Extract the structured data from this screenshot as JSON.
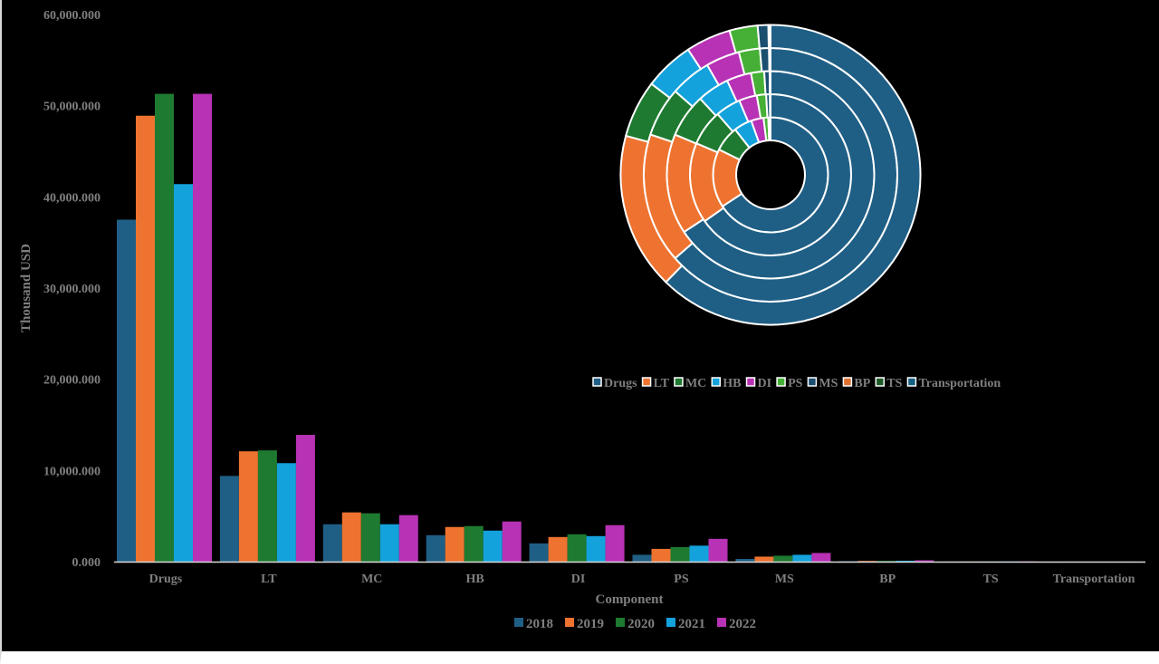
{
  "chart_data": [
    {
      "type": "bar",
      "xlabel": "Component",
      "ylabel": "Thousand USD",
      "ylim": [
        0,
        60000
      ],
      "y_ticks": [
        "0.000",
        "10,000.000",
        "20,000.000",
        "30,000.000",
        "40,000.000",
        "50,000.000",
        "60,000.000"
      ],
      "categories": [
        "Drugs",
        "LT",
        "MC",
        "HB",
        "DI",
        "PS",
        "MS",
        "BP",
        "TS",
        "Transportation"
      ],
      "series": [
        {
          "name": "2018",
          "color": "#1f5f86",
          "values": [
            37500,
            9400,
            4100,
            2900,
            2000,
            750,
            300,
            50,
            10,
            5
          ]
        },
        {
          "name": "2019",
          "color": "#ee7330",
          "values": [
            48900,
            12100,
            5400,
            3800,
            2700,
            1400,
            550,
            80,
            15,
            5
          ]
        },
        {
          "name": "2020",
          "color": "#1e7a30",
          "values": [
            51300,
            12200,
            5300,
            3900,
            3000,
            1600,
            650,
            90,
            20,
            5
          ]
        },
        {
          "name": "2021",
          "color": "#14a2dc",
          "values": [
            41400,
            10800,
            4100,
            3400,
            2800,
            1750,
            750,
            100,
            20,
            5
          ]
        },
        {
          "name": "2022",
          "color": "#b732b5",
          "values": [
            51300,
            13900,
            5100,
            4400,
            4000,
            2500,
            950,
            150,
            25,
            10
          ]
        }
      ],
      "grid": false,
      "legend": "bottom"
    },
    {
      "type": "pie",
      "variant": "doughnut",
      "rings": 5,
      "categories": [
        "Drugs",
        "LT",
        "MC",
        "HB",
        "DI",
        "PS",
        "MS",
        "BP",
        "TS",
        "Transportation"
      ],
      "colors": [
        "#1f5f86",
        "#ee7330",
        "#1e7a30",
        "#14a2dc",
        "#b732b5",
        "#45b035",
        "#1a4f70",
        "#e07030",
        "#1c5a2a",
        "#156080"
      ],
      "ring_values": [
        [
          37500,
          9400,
          4100,
          2900,
          2000,
          750,
          300,
          50,
          10,
          5
        ],
        [
          48900,
          12100,
          5400,
          3800,
          2700,
          1400,
          550,
          80,
          15,
          5
        ],
        [
          51300,
          12200,
          5300,
          3900,
          3000,
          1600,
          650,
          90,
          20,
          5
        ],
        [
          41400,
          10800,
          4100,
          3400,
          2800,
          1750,
          750,
          100,
          20,
          5
        ],
        [
          51300,
          13900,
          5100,
          4400,
          4000,
          2500,
          950,
          150,
          25,
          10
        ]
      ],
      "legend": "below"
    }
  ]
}
